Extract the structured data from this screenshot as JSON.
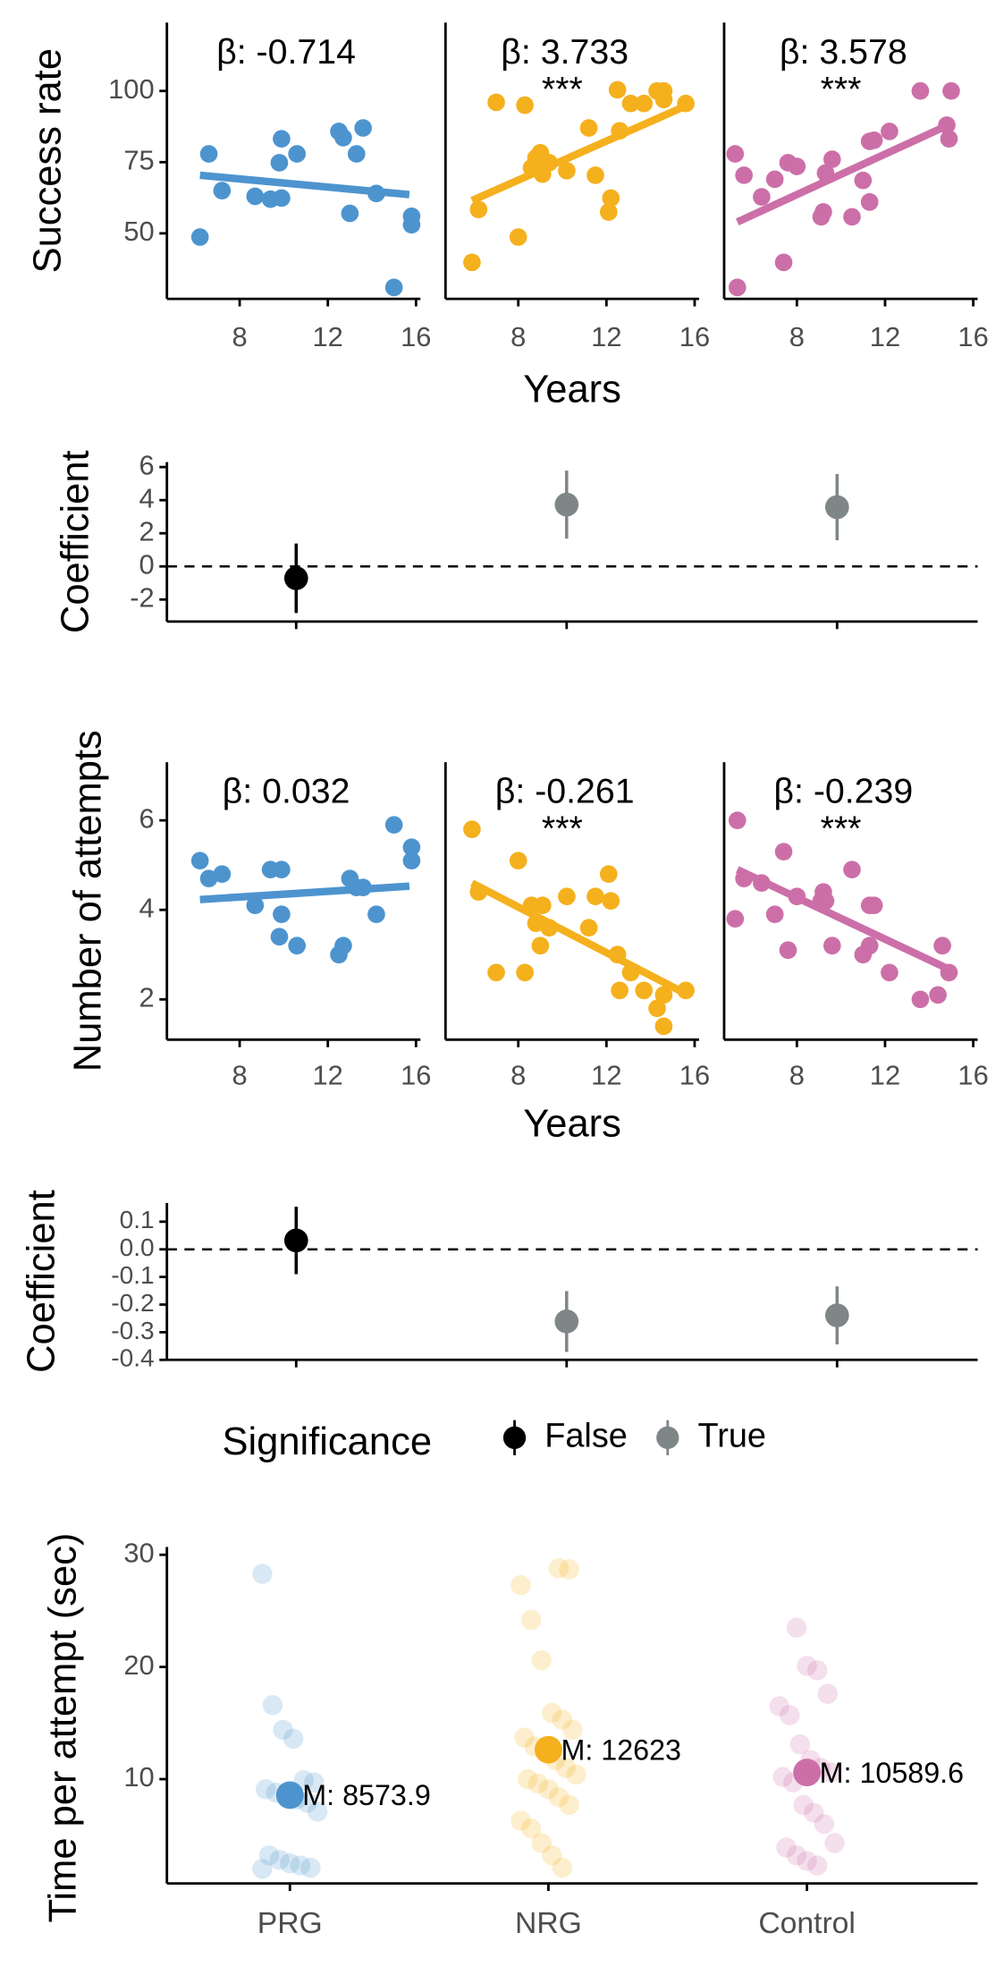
{
  "chart_data": [
    {
      "type": "facet-scatter",
      "ylabel": "Success rate",
      "xlabel": "Years",
      "xlim": [
        4.7,
        16.2
      ],
      "xticks": [
        8,
        12,
        16
      ],
      "ylim": [
        27,
        124
      ],
      "yticks": [
        50,
        75,
        100
      ],
      "panels": [
        {
          "color": "#4d94cf",
          "x": [
            6.2,
            6.6,
            7.2,
            8.7,
            9.4,
            9.8,
            9.9,
            9.9,
            10.6,
            12.5,
            12.7,
            13.0,
            13.3,
            13.6,
            14.2,
            15.0,
            15.8,
            15.8
          ],
          "y": [
            48.7,
            77.9,
            65,
            63,
            62,
            74.8,
            62.4,
            83.2,
            77.9,
            85.8,
            83.6,
            57,
            77.9,
            87,
            64,
            31,
            56,
            53
          ],
          "fit_x": [
            6.2,
            15.7
          ],
          "fit_y": [
            70.4,
            63.6
          ],
          "annotation": "β: -0.714"
        },
        {
          "color": "#f5b01d",
          "x": [
            5.9,
            6.2,
            7.0,
            8.0,
            8.3,
            8.6,
            8.8,
            9.0,
            9.1,
            9.4,
            10.2,
            11.2,
            11.5,
            12.1,
            12.2,
            12.5,
            12.6,
            13.1,
            13.7,
            14.3,
            14.6,
            14.6,
            15.6
          ],
          "y": [
            39.8,
            58.4,
            96,
            48.7,
            95,
            73,
            76.5,
            78.3,
            70.8,
            74.8,
            72,
            87,
            70.4,
            57.5,
            62.4,
            100.4,
            86,
            95.6,
            95.6,
            100,
            97,
            100,
            95.6
          ],
          "fit_x": [
            5.9,
            15.7
          ],
          "fit_y": [
            61.5,
            95.1
          ],
          "annotation": "β: 3.733",
          "significance_label": "***"
        },
        {
          "color": "#cc6fa8",
          "x": [
            5.2,
            5.3,
            5.6,
            6.4,
            7.0,
            7.4,
            7.6,
            8.0,
            9.1,
            9.2,
            9.3,
            9.6,
            10.5,
            11.0,
            11.3,
            11.3,
            11.5,
            12.2,
            15.0,
            13.6,
            14.8,
            14.9
          ],
          "y": [
            77.9,
            31,
            70.4,
            62.8,
            69,
            39.8,
            74.8,
            73.5,
            55.8,
            57.5,
            71.2,
            76,
            55.8,
            68.6,
            61,
            82.3,
            82.7,
            85.8,
            100,
            100,
            88,
            83.2
          ],
          "fit_x": [
            5.3,
            15.0
          ],
          "fit_y": [
            54,
            88.5
          ],
          "annotation": "β: 3.578",
          "significance_label": "***"
        }
      ]
    },
    {
      "type": "coefficient",
      "ylabel": "Coefficient",
      "ylim": [
        -3.33,
        6.3
      ],
      "yticks": [
        -2,
        0,
        2,
        4,
        6
      ],
      "values": [
        -0.714,
        3.733,
        3.578
      ],
      "errors": [
        2.1,
        2.05,
        2.0
      ],
      "significant": [
        false,
        true,
        true
      ],
      "reference_line": 0
    },
    {
      "type": "facet-scatter",
      "ylabel": "Number of attempts",
      "xlabel": "Years",
      "xlim": [
        4.7,
        16.2
      ],
      "xticks": [
        8,
        12,
        16
      ],
      "ylim": [
        1.1,
        7.3
      ],
      "yticks": [
        2,
        4,
        6
      ],
      "panels": [
        {
          "color": "#4d94cf",
          "x": [
            6.2,
            6.6,
            7.2,
            8.7,
            9.4,
            9.8,
            9.9,
            9.9,
            10.6,
            12.5,
            12.7,
            13.0,
            13.3,
            13.6,
            14.2,
            15.0,
            15.8,
            15.8
          ],
          "y": [
            5.1,
            4.7,
            4.8,
            4.1,
            4.9,
            3.4,
            3.9,
            4.9,
            3.2,
            3.0,
            3.2,
            4.7,
            4.5,
            4.5,
            3.9,
            5.9,
            5.4,
            5.1
          ],
          "fit_x": [
            6.2,
            15.7
          ],
          "fit_y": [
            4.23,
            4.53
          ],
          "annotation": "β: 0.032"
        },
        {
          "color": "#f5b01d",
          "x": [
            5.9,
            6.2,
            7.0,
            8.0,
            8.3,
            8.6,
            8.8,
            9.0,
            9.1,
            9.4,
            10.2,
            11.2,
            11.5,
            12.1,
            12.2,
            12.5,
            12.6,
            13.1,
            13.7,
            14.3,
            14.6,
            14.6,
            15.6
          ],
          "y": [
            5.8,
            4.4,
            2.6,
            5.1,
            2.6,
            4.1,
            3.7,
            3.2,
            4.1,
            3.6,
            4.3,
            3.6,
            4.3,
            4.8,
            4.2,
            3.0,
            2.2,
            2.6,
            2.2,
            1.8,
            1.4,
            2.1,
            2.2
          ],
          "fit_x": [
            5.9,
            15.7
          ],
          "fit_y": [
            4.6,
            2.1
          ],
          "annotation": "β: -0.261",
          "significance_label": "***"
        },
        {
          "color": "#cc6fa8",
          "x": [
            5.2,
            5.3,
            5.6,
            6.4,
            7.0,
            7.4,
            7.6,
            8.0,
            9.1,
            9.2,
            9.3,
            9.6,
            10.5,
            11.0,
            11.3,
            11.3,
            11.5,
            12.2,
            13.6,
            14.4,
            14.6,
            14.9
          ],
          "y": [
            3.8,
            6.0,
            4.7,
            4.6,
            3.9,
            5.3,
            3.1,
            4.3,
            4.2,
            4.4,
            4.2,
            3.2,
            4.9,
            3.0,
            4.1,
            3.2,
            4.1,
            2.6,
            2.0,
            2.1,
            3.2,
            2.6
          ],
          "fit_x": [
            5.3,
            15.0
          ],
          "fit_y": [
            4.9,
            2.65
          ],
          "annotation": "β: -0.239",
          "significance_label": "***"
        }
      ]
    },
    {
      "type": "coefficient",
      "ylabel": "Coefficient",
      "ylim": [
        -0.4,
        0.168
      ],
      "yticks": [
        0.1,
        {
          "value": 0,
          "label": "0.0"
        },
        -0.1,
        -0.2,
        -0.3,
        -0.4
      ],
      "values": [
        0.032,
        -0.261,
        -0.239
      ],
      "errors": [
        0.122,
        0.11,
        0.105
      ],
      "significant": [
        false,
        true,
        true
      ],
      "reference_line": 0
    },
    {
      "type": "legend",
      "title": "Significance",
      "entries": [
        {
          "name": "False",
          "color": "#000000"
        },
        {
          "name": "True",
          "color": "#7f8687"
        }
      ]
    },
    {
      "type": "strip",
      "ylabel": "Time per attempt (sec)",
      "ylim": [
        0.7,
        30.7
      ],
      "yticks": [
        10,
        20,
        30
      ],
      "categories": [
        "PRG",
        "NRG",
        "Control"
      ],
      "colors": [
        "#4d94cf",
        "#f5b01d",
        "#cc6fa8"
      ],
      "points": [
        [
          28.3,
          16.6,
          14.4,
          13.6,
          9.9,
          9.7,
          9.1,
          8.8,
          8.5,
          8.2,
          7.9,
          7.1,
          3.2,
          2.8,
          2.5,
          2.3,
          2.1,
          2.0
        ],
        [
          28.8,
          28.7,
          27.3,
          24.2,
          20.6,
          15.9,
          15.3,
          14.4,
          13.7,
          12.9,
          12.4,
          11.7,
          11.0,
          10.4,
          10.0,
          9.6,
          9.1,
          8.4,
          7.7,
          6.3,
          5.6,
          4.3,
          3.2,
          2.1
        ],
        [
          23.5,
          20.1,
          19.7,
          17.6,
          16.5,
          15.7,
          13.1,
          11.7,
          11.0,
          10.6,
          10.2,
          9.7,
          7.7,
          7.0,
          6.0,
          4.3,
          3.9,
          3.2,
          2.7,
          2.3
        ]
      ],
      "means": [
        8.5739,
        12.623,
        10.5896
      ],
      "value_labels": [
        "M: 8573.9",
        "M: 12623",
        "M: 10589.6"
      ]
    }
  ]
}
